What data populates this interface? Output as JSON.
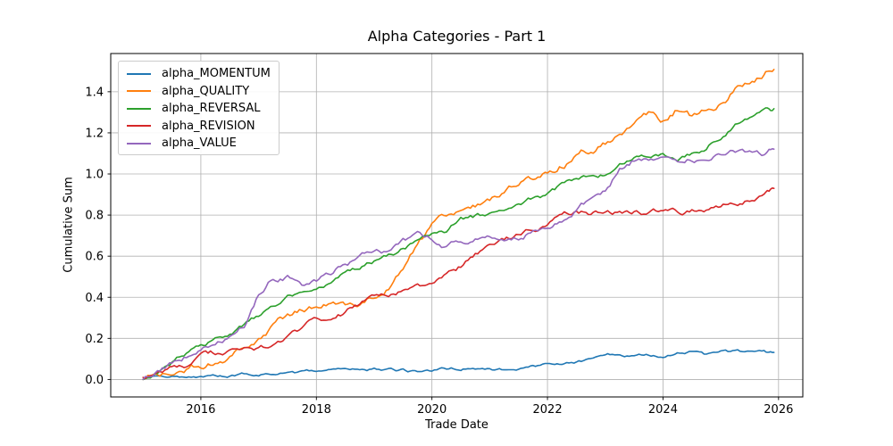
{
  "figure": {
    "background": "#ffffff"
  },
  "chart_data": {
    "type": "line",
    "title": "Alpha Categories - Part 1",
    "xlabel": "Trade Date",
    "ylabel": "Cumulative Sum",
    "grid": true,
    "grid_color": "#b0b0b0",
    "legend_position": "upper-left",
    "xlim": [
      2014.44,
      2026.42
    ],
    "ylim": [
      -0.085,
      1.586
    ],
    "x_ticks": [
      {
        "value": 2016,
        "label": "2016"
      },
      {
        "value": 2018,
        "label": "2018"
      },
      {
        "value": 2020,
        "label": "2020"
      },
      {
        "value": 2022,
        "label": "2022"
      },
      {
        "value": 2024,
        "label": "2024"
      },
      {
        "value": 2026,
        "label": "2026"
      }
    ],
    "y_ticks": [
      {
        "value": 0.0,
        "label": "0.0"
      },
      {
        "value": 0.2,
        "label": "0.2"
      },
      {
        "value": 0.4,
        "label": "0.4"
      },
      {
        "value": 0.6,
        "label": "0.6"
      },
      {
        "value": 0.8,
        "label": "0.8"
      },
      {
        "value": 1.0,
        "label": "1.0"
      },
      {
        "value": 1.2,
        "label": "1.2"
      },
      {
        "value": 1.4,
        "label": "1.4"
      }
    ],
    "x": [
      2015.0,
      2015.25,
      2015.5,
      2015.75,
      2016.0,
      2016.25,
      2016.5,
      2016.75,
      2017.0,
      2017.25,
      2017.5,
      2017.75,
      2018.0,
      2018.25,
      2018.5,
      2018.75,
      2019.0,
      2019.25,
      2019.5,
      2019.75,
      2020.0,
      2020.25,
      2020.5,
      2020.75,
      2021.0,
      2021.25,
      2021.5,
      2021.75,
      2022.0,
      2022.25,
      2022.5,
      2022.75,
      2023.0,
      2023.25,
      2023.5,
      2023.75,
      2024.0,
      2024.25,
      2024.5,
      2024.75,
      2025.0,
      2025.25,
      2025.5,
      2025.75,
      2025.92
    ],
    "series": [
      {
        "name": "alpha_MOMENTUM",
        "color": "#1f77b4",
        "values": [
          0.0,
          0.005,
          0.01,
          0.015,
          0.02,
          0.02,
          0.025,
          0.03,
          0.03,
          0.03,
          0.035,
          0.035,
          0.035,
          0.04,
          0.04,
          0.04,
          0.045,
          0.045,
          0.042,
          0.035,
          0.048,
          0.05,
          0.055,
          0.058,
          0.06,
          0.047,
          0.06,
          0.065,
          0.07,
          0.08,
          0.09,
          0.102,
          0.113,
          0.121,
          0.108,
          0.114,
          0.117,
          0.125,
          0.131,
          0.115,
          0.125,
          0.128,
          0.124,
          0.122,
          0.121
        ]
      },
      {
        "name": "alpha_QUALITY",
        "color": "#ff7f0e",
        "values": [
          0.0,
          0.01,
          0.02,
          0.04,
          0.07,
          0.1,
          0.12,
          0.16,
          0.21,
          0.25,
          0.3,
          0.34,
          0.37,
          0.38,
          0.37,
          0.36,
          0.39,
          0.44,
          0.55,
          0.66,
          0.74,
          0.78,
          0.82,
          0.85,
          0.88,
          0.91,
          0.95,
          0.98,
          1.01,
          1.05,
          1.09,
          1.12,
          1.16,
          1.2,
          1.23,
          1.29,
          1.25,
          1.32,
          1.28,
          1.33,
          1.36,
          1.42,
          1.46,
          1.49,
          1.5
        ]
      },
      {
        "name": "alpha_REVERSAL",
        "color": "#2ca02c",
        "values": [
          0.0,
          0.04,
          0.08,
          0.13,
          0.17,
          0.2,
          0.22,
          0.27,
          0.31,
          0.35,
          0.4,
          0.42,
          0.45,
          0.48,
          0.52,
          0.55,
          0.58,
          0.61,
          0.64,
          0.67,
          0.71,
          0.72,
          0.78,
          0.79,
          0.8,
          0.82,
          0.86,
          0.88,
          0.9,
          0.94,
          0.96,
          0.98,
          1.0,
          1.06,
          1.08,
          1.09,
          1.09,
          1.08,
          1.1,
          1.13,
          1.19,
          1.24,
          1.27,
          1.3,
          1.31
        ]
      },
      {
        "name": "alpha_REVISION",
        "color": "#d62728",
        "values": [
          0.01,
          0.03,
          0.05,
          0.07,
          0.1,
          0.12,
          0.13,
          0.14,
          0.15,
          0.17,
          0.2,
          0.24,
          0.29,
          0.31,
          0.33,
          0.37,
          0.4,
          0.41,
          0.43,
          0.445,
          0.46,
          0.5,
          0.545,
          0.6,
          0.64,
          0.66,
          0.7,
          0.73,
          0.76,
          0.79,
          0.82,
          0.81,
          0.81,
          0.81,
          0.81,
          0.81,
          0.815,
          0.81,
          0.82,
          0.82,
          0.83,
          0.86,
          0.88,
          0.9,
          0.94
        ]
      },
      {
        "name": "alpha_VALUE",
        "color": "#9467bd",
        "values": [
          0.0,
          0.05,
          0.09,
          0.12,
          0.15,
          0.18,
          0.2,
          0.26,
          0.42,
          0.5,
          0.5,
          0.47,
          0.49,
          0.52,
          0.57,
          0.59,
          0.61,
          0.62,
          0.66,
          0.68,
          0.67,
          0.64,
          0.66,
          0.68,
          0.69,
          0.69,
          0.7,
          0.73,
          0.76,
          0.78,
          0.84,
          0.88,
          0.93,
          1.02,
          1.07,
          1.06,
          1.09,
          1.07,
          1.08,
          1.09,
          1.11,
          1.11,
          1.11,
          1.1,
          1.13
        ]
      }
    ]
  }
}
